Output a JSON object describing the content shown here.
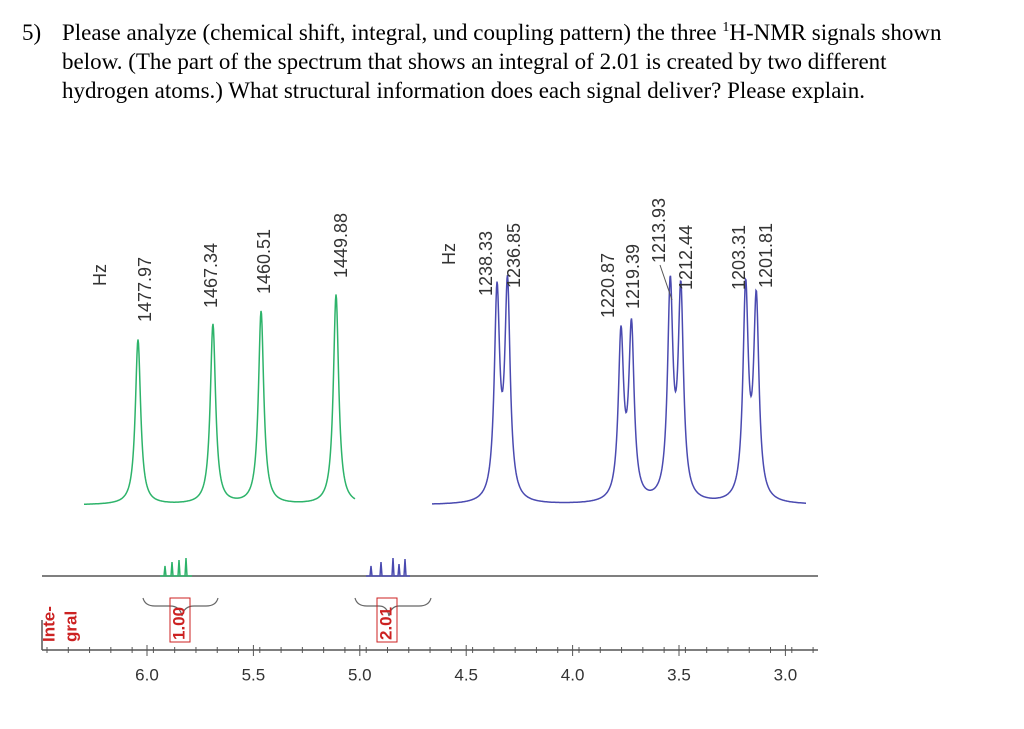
{
  "question": {
    "number": "5)",
    "text_before": "Please analyze (chemical shift, integral, und coupling pattern) the three ",
    "superscript": "1",
    "text_after": "H-NMR signals shown below. (The part of the spectrum that shows an integral of 2.01 is created by two different hydrogen atoms.) What structural information does each signal deliver? Please explain."
  },
  "figure": {
    "green_unit": "Hz",
    "green_peaks": [
      "1477.97",
      "1467.34",
      "1460.51",
      "1449.88"
    ],
    "blue_unit": "Hz",
    "blue_peaks": [
      "1238.33",
      "1236.85",
      "1220.87",
      "1219.39",
      "1213.93",
      "1212.44",
      "1203.31",
      "1201.81"
    ],
    "integral_title": [
      "Inte-",
      "gral"
    ],
    "integrals": [
      "1.00",
      "2.01"
    ],
    "axis_ticks": [
      "6.0",
      "5.5",
      "5.0",
      "4.5",
      "4.0",
      "3.5",
      "3.0"
    ]
  }
}
